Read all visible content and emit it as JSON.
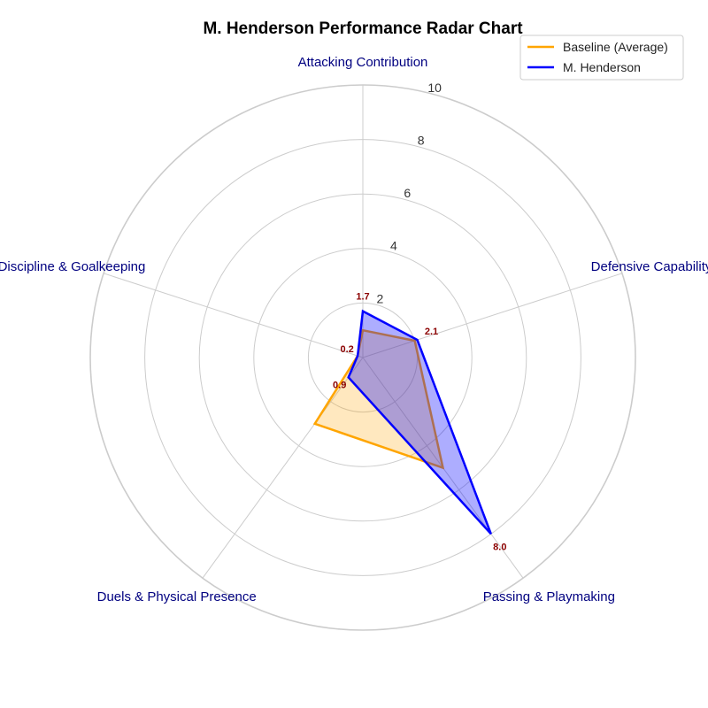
{
  "chart_data": {
    "type": "radar",
    "title": "M. Henderson Performance Radar Chart",
    "categories": [
      "Attacking Contribution",
      "Defensive Capability",
      "Passing & Playmaking",
      "Duels & Physical Presence",
      "Discipline & Goalkeeping"
    ],
    "rlim": [
      0,
      10
    ],
    "rticks": [
      2,
      4,
      6,
      8,
      10
    ],
    "grid": true,
    "legend_position": "top-right",
    "series": [
      {
        "name": "Baseline (Average)",
        "values": [
          1.0,
          2.0,
          5.0,
          3.0,
          0.2
        ],
        "color": "#FFA500"
      },
      {
        "name": "M. Henderson",
        "values": [
          1.7,
          2.1,
          8.0,
          0.9,
          0.2
        ],
        "color": "#0000FF",
        "labeled": true
      }
    ],
    "data_labels": [
      "1.7",
      "2.1",
      "8.0",
      "0.9",
      "0.2"
    ],
    "colors": {
      "title": "#00008B",
      "axis_label": "#000080",
      "data_label": "#8B0000",
      "grid": "#cccccc"
    }
  }
}
